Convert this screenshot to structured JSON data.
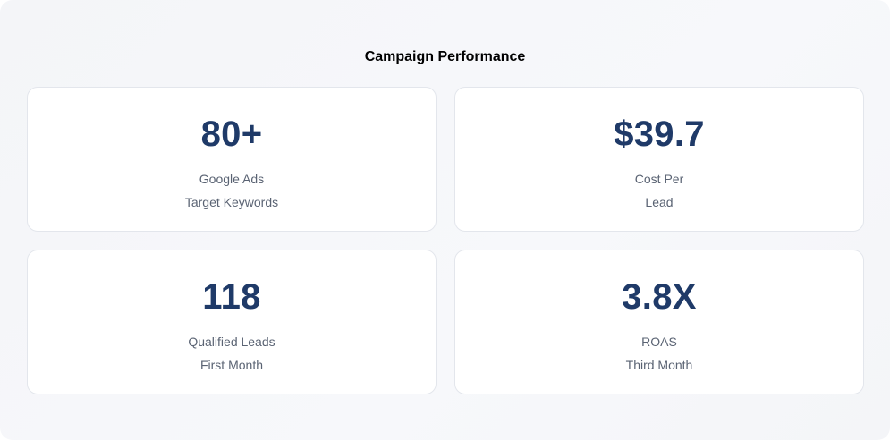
{
  "title": "Campaign Performance",
  "cards": [
    {
      "value": "80+",
      "line1": "Google Ads",
      "line2": "Target Keywords"
    },
    {
      "value": "$39.7",
      "line1": "Cost Per",
      "line2": "Lead"
    },
    {
      "value": "118",
      "line1": "Qualified Leads",
      "line2": "First Month"
    },
    {
      "value": "3.8X",
      "line1": "ROAS",
      "line2": "Third Month"
    }
  ],
  "colors": {
    "accent": "#1f3a68",
    "text_muted": "#5a6373",
    "card_background": "#ffffff",
    "panel_background": "#f5f6f9"
  }
}
